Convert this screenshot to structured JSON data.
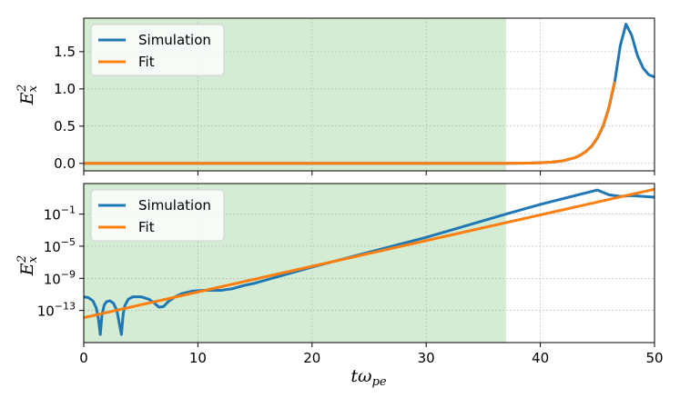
{
  "chart_data": [
    {
      "type": "line",
      "panel": "top",
      "ylabel": "E_x^2",
      "yscale": "linear",
      "xlim": [
        0,
        50
      ],
      "ylim": [
        -0.1,
        1.95
      ],
      "yticks": [
        0.0,
        0.5,
        1.0,
        1.5
      ],
      "ytick_labels": [
        "0.0",
        "0.5",
        "1.0",
        "1.5"
      ],
      "xticks": [
        0,
        10,
        20,
        30,
        40,
        50
      ],
      "grid": true,
      "shaded_region": {
        "x_start": 0,
        "x_end": 37,
        "color": "#d5ecd4"
      },
      "legend": {
        "placement": "top-left",
        "entries": [
          "Simulation",
          "Fit"
        ]
      },
      "series": [
        {
          "name": "Simulation",
          "color": "#1f77b4",
          "x": [
            0,
            10,
            20,
            30,
            37,
            38,
            39,
            40,
            41,
            42,
            43,
            43.5,
            44,
            44.5,
            45,
            45.5,
            46,
            46.5,
            47,
            47.5,
            48,
            48.5,
            49,
            49.5,
            50
          ],
          "y": [
            0,
            0,
            0,
            0,
            0.001,
            0.002,
            0.004,
            0.008,
            0.017,
            0.035,
            0.075,
            0.11,
            0.16,
            0.23,
            0.34,
            0.5,
            0.74,
            1.08,
            1.58,
            1.87,
            1.72,
            1.45,
            1.28,
            1.19,
            1.16
          ]
        },
        {
          "name": "Fit",
          "color": "#ff7f0e",
          "x": [
            0,
            10,
            20,
            30,
            37,
            38,
            39,
            40,
            41,
            42,
            43,
            43.5,
            44,
            44.5,
            45,
            45.5,
            46,
            46.5
          ],
          "y": [
            0,
            0,
            0,
            0,
            0.001,
            0.002,
            0.004,
            0.008,
            0.017,
            0.036,
            0.076,
            0.11,
            0.16,
            0.235,
            0.345,
            0.51,
            0.75,
            1.1
          ]
        }
      ]
    },
    {
      "type": "line",
      "panel": "bottom",
      "xlabel": "tω_pe",
      "ylabel": "E_x^2",
      "yscale": "log",
      "xlim": [
        0,
        50
      ],
      "ylim_log10": [
        -17,
        2.8
      ],
      "ytick_log10": [
        -13,
        -9,
        -5,
        -1
      ],
      "ytick_exponents": [
        "−13",
        "−9",
        "−5",
        "−1"
      ],
      "ytick_base": "10",
      "xticks": [
        0,
        10,
        20,
        30,
        40,
        50
      ],
      "xtick_labels": [
        "0",
        "10",
        "20",
        "30",
        "40",
        "50"
      ],
      "grid": true,
      "shaded_region": {
        "x_start": 0,
        "x_end": 37,
        "color": "#d5ecd4"
      },
      "legend": {
        "placement": "top-left",
        "entries": [
          "Simulation",
          "Fit"
        ]
      },
      "series": [
        {
          "name": "Simulation",
          "color": "#1f77b4",
          "x_log": [
            0,
            0.4,
            0.8,
            1.1,
            1.3,
            1.45,
            1.6,
            1.8,
            2.0,
            2.3,
            2.6,
            2.9,
            3.1,
            3.3,
            3.45,
            3.6,
            3.9,
            4.3,
            5.0,
            5.7,
            6.2,
            6.6,
            7.0,
            7.4,
            8.0,
            8.6,
            9.5,
            10.5,
            12,
            13,
            14,
            15,
            20,
            30,
            37,
            40,
            45,
            46,
            47,
            48,
            49,
            50
          ],
          "y_log10": [
            -11.3,
            -11.4,
            -11.8,
            -12.7,
            -14.2,
            -16.0,
            -13.5,
            -12.3,
            -11.9,
            -11.8,
            -12.1,
            -13.0,
            -14.5,
            -16.0,
            -13.5,
            -12.4,
            -11.6,
            -11.3,
            -11.3,
            -11.6,
            -12.1,
            -12.6,
            -12.5,
            -11.9,
            -11.3,
            -10.9,
            -10.6,
            -10.5,
            -10.5,
            -10.3,
            -9.9,
            -9.6,
            -7.6,
            -3.9,
            -1.0,
            0.2,
            2.0,
            1.4,
            1.2,
            1.3,
            1.2,
            1.1
          ]
        },
        {
          "name": "Fit",
          "color": "#ff7f0e",
          "x_log": [
            0,
            50
          ],
          "y_log10": [
            -13.9,
            2.1
          ]
        }
      ]
    }
  ]
}
